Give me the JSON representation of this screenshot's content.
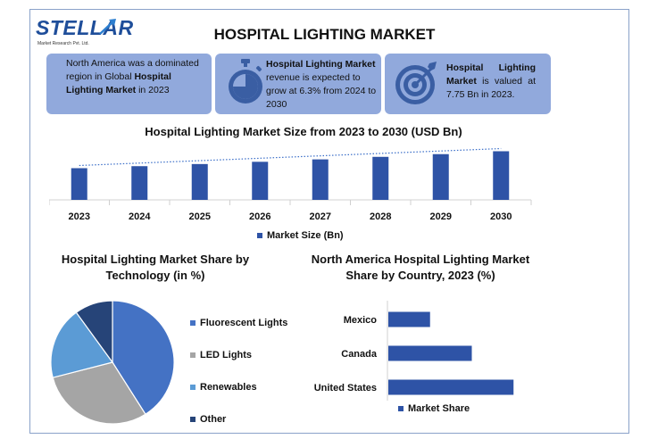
{
  "logo": {
    "brand": "STELLAR",
    "tagline": "Market Research Pvt. Ltd."
  },
  "title": "HOSPITAL LIGHTING MARKET",
  "cards": {
    "card1": {
      "text_a": "North America was a dominated region in Global ",
      "bold": "Hospital Lighting Market",
      "text_b": " in 2023",
      "icon": "none"
    },
    "card2": {
      "bold": "Hospital Lighting Market",
      "text": " revenue is expected to grow at 6.3% from 2024 to 2030",
      "icon": "stopwatch-icon"
    },
    "card3": {
      "bold": "Hospital Lighting Market",
      "text": " is valued at 7.75 Bn in 2023.",
      "icon": "target-icon"
    }
  },
  "colors": {
    "accent": "#2e53a6",
    "card_bg": "#91a9dc",
    "frame": "#8aa2c9"
  },
  "chart_data": [
    {
      "type": "bar",
      "title": "Hospital Lighting Market Size from 2023 to 2030 (USD Bn)",
      "categories": [
        "2023",
        "2024",
        "2025",
        "2026",
        "2027",
        "2028",
        "2029",
        "2030"
      ],
      "series": [
        {
          "name": "Market Size (Bn)",
          "values": [
            7.75,
            8.24,
            8.76,
            9.31,
            9.9,
            10.52,
            11.18,
            11.89
          ]
        }
      ],
      "trendline": "dotted",
      "color": "#2e53a6"
    },
    {
      "type": "pie",
      "title": "Hospital Lighting Market Share by Technology (in %)",
      "labels": [
        "Fluorescent Lights",
        "LED Lights",
        "Renewables",
        "Other"
      ],
      "values": [
        41,
        30,
        19,
        10
      ],
      "colors": [
        "#4472c4",
        "#a5a5a5",
        "#5b9bd5",
        "#264478"
      ],
      "legend_position": "right"
    },
    {
      "type": "bar",
      "orientation": "horizontal",
      "title": "North America Hospital Lighting Market Share by Country, 2023 (%)",
      "categories": [
        "Mexico",
        "Canada",
        "United States"
      ],
      "series": [
        {
          "name": "Market Share",
          "values": [
            11,
            22,
            33
          ]
        }
      ],
      "color": "#2e53a6"
    }
  ]
}
